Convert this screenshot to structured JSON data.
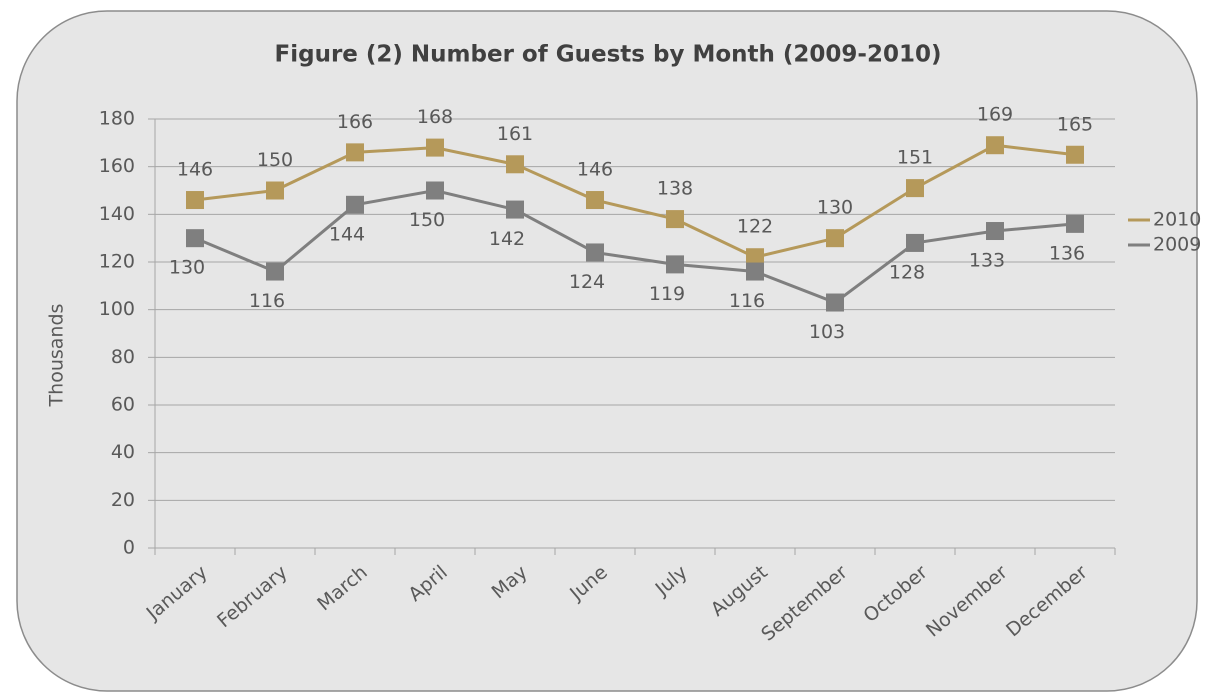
{
  "chart_data": {
    "type": "line",
    "title": "Figure (2) Number of Guests by Month (2009-2010)",
    "y_label": "Thousands",
    "categories": [
      "January",
      "February",
      "March",
      "April",
      "May",
      "June",
      "July",
      "August",
      "September",
      "October",
      "November",
      "December"
    ],
    "series": [
      {
        "name": "2010",
        "color": "#b5995a",
        "values": [
          146,
          150,
          166,
          168,
          161,
          146,
          138,
          122,
          130,
          151,
          169,
          165
        ]
      },
      {
        "name": "2009",
        "color": "#7f7f7f",
        "values": [
          130,
          116,
          144,
          150,
          142,
          124,
          119,
          116,
          103,
          128,
          133,
          136
        ]
      }
    ],
    "ylim": [
      0,
      180
    ],
    "yticks": [
      0,
      20,
      40,
      60,
      80,
      100,
      120,
      140,
      160,
      180
    ],
    "grid": true,
    "legend": "right"
  }
}
